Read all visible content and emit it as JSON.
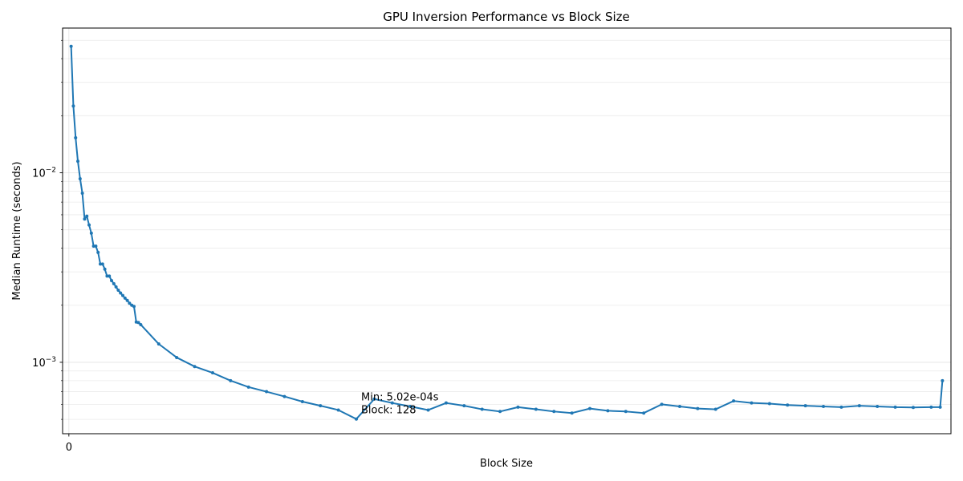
{
  "chart_data": {
    "type": "line",
    "title": "GPU Inversion Performance vs Block Size",
    "xlabel": "Block Size",
    "ylabel": "Median Runtime (seconds)",
    "yscale": "log",
    "ylim": [
      0.00042,
      0.058
    ],
    "xlim": [
      -2.8,
      392.8
    ],
    "grid": true,
    "x_ticks": [
      0
    ],
    "y_ticks": [
      {
        "value": 0.001,
        "base": "10",
        "exp": "−3"
      },
      {
        "value": 0.01,
        "base": "10",
        "exp": "−2"
      }
    ],
    "color": "#1f77b4",
    "series": [
      {
        "x": [
          1,
          2,
          3,
          4,
          5,
          6,
          7,
          8,
          9,
          10,
          11,
          12,
          13,
          14,
          15,
          16,
          17,
          18,
          19,
          20,
          21,
          22,
          23,
          24,
          25,
          26,
          27,
          28,
          29,
          30,
          31,
          32,
          40,
          48,
          56,
          64,
          72,
          80,
          88,
          96,
          104,
          112,
          120,
          128,
          136,
          144,
          152,
          160,
          168,
          176,
          184,
          192,
          200,
          208,
          216,
          224,
          232,
          240,
          248,
          256,
          264,
          272,
          280,
          288,
          296,
          304,
          312,
          320,
          328,
          336,
          344,
          352,
          360,
          368,
          376,
          384,
          388,
          389
        ],
        "y": [
          0.0465,
          0.0225,
          0.0153,
          0.0115,
          0.0093,
          0.0078,
          0.0057,
          0.0059,
          0.0053,
          0.0048,
          0.0041,
          0.0041,
          0.0038,
          0.0033,
          0.0033,
          0.0031,
          0.00285,
          0.00285,
          0.0027,
          0.0026,
          0.0025,
          0.0024,
          0.00232,
          0.00225,
          0.00218,
          0.00212,
          0.00205,
          0.002,
          0.00197,
          0.00163,
          0.00162,
          0.00158,
          0.00125,
          0.00106,
          0.00095,
          0.00088,
          0.0008,
          0.00074,
          0.0007,
          0.00066,
          0.00062,
          0.00059,
          0.00056,
          0.000502,
          0.00064,
          0.00061,
          0.000585,
          0.00056,
          0.00061,
          0.00059,
          0.000565,
          0.00055,
          0.00058,
          0.000565,
          0.00055,
          0.00054,
          0.00057,
          0.000555,
          0.00055,
          0.00054,
          0.0006,
          0.000585,
          0.00057,
          0.000565,
          0.000625,
          0.00061,
          0.000605,
          0.000595,
          0.00059,
          0.000585,
          0.00058,
          0.00059,
          0.000585,
          0.00058,
          0.000578,
          0.00058,
          0.00058,
          0.0008
        ]
      }
    ],
    "annotation": {
      "x": 128,
      "y": 0.000502,
      "line1": "Min: 5.02e-04s",
      "line2": "Block: 128"
    }
  }
}
